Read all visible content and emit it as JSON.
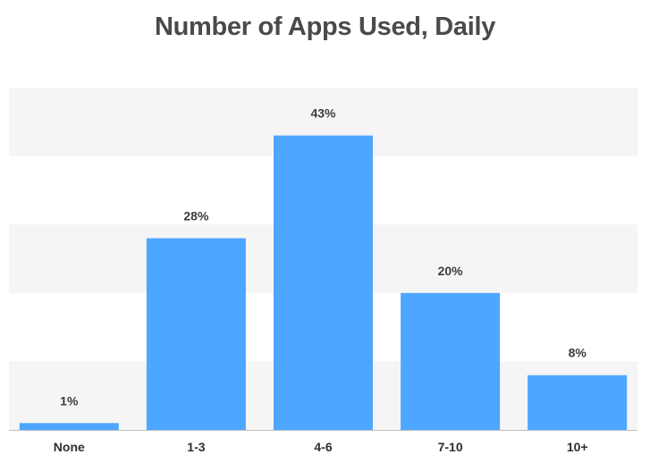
{
  "chart_data": {
    "type": "bar",
    "title": "Number of Apps Used, Daily",
    "categories": [
      "None",
      "1-3",
      "4-6",
      "7-10",
      "10+"
    ],
    "values": [
      1,
      28,
      43,
      20,
      8
    ],
    "value_labels": [
      "1%",
      "28%",
      "43%",
      "20%",
      "8%"
    ],
    "ylim": [
      0,
      50
    ],
    "grid": "alternating horizontal bands",
    "colors": {
      "bar": "#4DA6FF",
      "band": "#F5F5F5",
      "axis": "#BFBFBF"
    }
  }
}
